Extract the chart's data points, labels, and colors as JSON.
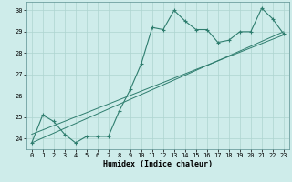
{
  "xlabel": "Humidex (Indice chaleur)",
  "ylabel": "",
  "x_data": [
    0,
    1,
    2,
    3,
    4,
    5,
    6,
    7,
    8,
    9,
    10,
    11,
    12,
    13,
    14,
    15,
    16,
    17,
    18,
    19,
    20,
    21,
    22,
    23
  ],
  "y_data": [
    23.8,
    25.1,
    24.8,
    24.2,
    23.8,
    24.1,
    24.1,
    24.1,
    25.3,
    26.3,
    27.5,
    29.2,
    29.1,
    30.0,
    29.5,
    29.1,
    29.1,
    28.5,
    28.6,
    29.0,
    29.0,
    30.1,
    29.6,
    28.9
  ],
  "reg_line1_x": [
    0,
    23
  ],
  "reg_line1_y": [
    24.2,
    28.85
  ],
  "reg_line2_x": [
    0,
    23
  ],
  "reg_line2_y": [
    23.8,
    29.0
  ],
  "line_color": "#2e7d6e",
  "bg_color": "#ceecea",
  "grid_color": "#aed4d0",
  "xlim": [
    -0.5,
    23.5
  ],
  "ylim": [
    23.5,
    30.4
  ],
  "yticks": [
    24,
    25,
    26,
    27,
    28,
    29,
    30
  ],
  "xticks": [
    0,
    1,
    2,
    3,
    4,
    5,
    6,
    7,
    8,
    9,
    10,
    11,
    12,
    13,
    14,
    15,
    16,
    17,
    18,
    19,
    20,
    21,
    22,
    23
  ],
  "xlabel_fontsize": 6,
  "tick_fontsize": 5
}
